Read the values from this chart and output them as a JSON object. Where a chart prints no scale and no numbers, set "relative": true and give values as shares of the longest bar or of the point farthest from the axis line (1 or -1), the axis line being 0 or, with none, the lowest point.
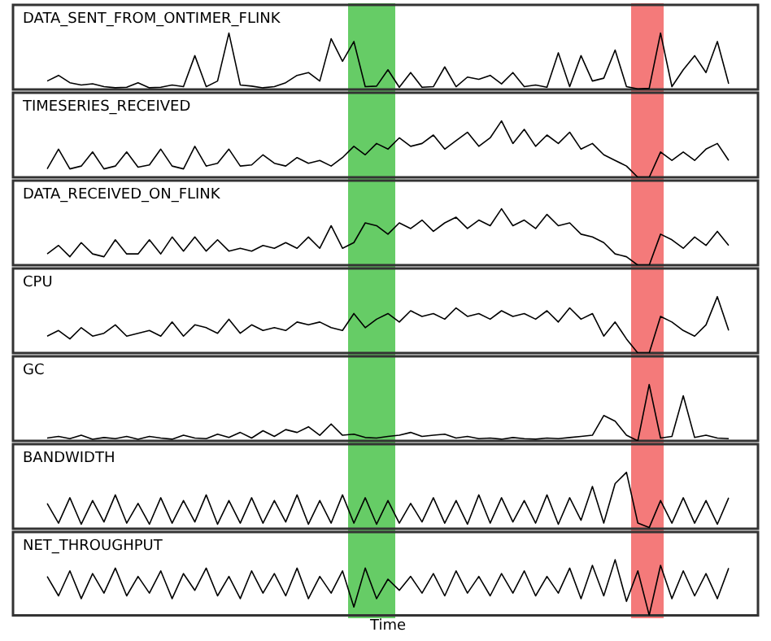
{
  "chart_data": [
    {
      "type": "line",
      "title": "DATA_SENT_FROM_ONTIMER_FLINK",
      "relative": true,
      "color": "#000000",
      "categories": [
        null,
        null,
        null,
        null,
        null,
        null,
        null,
        null,
        null,
        null,
        null,
        null,
        null,
        null,
        null,
        null,
        null,
        null,
        null,
        null,
        null,
        null,
        null,
        null,
        null,
        null,
        null,
        null,
        null,
        null,
        null,
        null,
        null,
        null,
        null,
        null,
        null,
        null,
        null,
        null,
        null,
        null,
        null,
        null,
        null,
        null,
        null,
        null,
        null,
        null,
        null,
        null,
        null,
        null,
        null,
        null,
        null,
        null,
        null,
        null,
        null
      ],
      "values": [
        0.15,
        0.25,
        0.12,
        0.08,
        0.1,
        0.05,
        0.03,
        0.04,
        0.12,
        0.03,
        0.04,
        0.08,
        0.05,
        0.6,
        0.05,
        0.15,
        1.0,
        0.08,
        0.06,
        0.03,
        0.05,
        0.12,
        0.25,
        0.3,
        0.15,
        0.9,
        0.5,
        0.85,
        0.05,
        0.06,
        0.35,
        0.04,
        0.3,
        0.04,
        0.05,
        0.4,
        0.05,
        0.22,
        0.18,
        0.25,
        0.1,
        0.3,
        0.05,
        0.08,
        0.04,
        0.65,
        0.05,
        0.6,
        0.15,
        0.2,
        0.7,
        0.05,
        0.01,
        0.02,
        1.0,
        0.05,
        0.35,
        0.6,
        0.3,
        0.85,
        0.1
      ]
    },
    {
      "type": "line",
      "title": "TIMESERIES_RECEIVED",
      "relative": true,
      "color": "#000000",
      "categories": [
        null,
        null,
        null,
        null,
        null,
        null,
        null,
        null,
        null,
        null,
        null,
        null,
        null,
        null,
        null,
        null,
        null,
        null,
        null,
        null,
        null,
        null,
        null,
        null,
        null,
        null,
        null,
        null,
        null,
        null,
        null,
        null,
        null,
        null,
        null,
        null,
        null,
        null,
        null,
        null,
        null,
        null,
        null,
        null,
        null,
        null,
        null,
        null,
        null,
        null,
        null,
        null,
        null,
        null,
        null,
        null,
        null,
        null,
        null,
        null,
        null
      ],
      "values": [
        0.15,
        0.5,
        0.15,
        0.2,
        0.45,
        0.15,
        0.2,
        0.45,
        0.18,
        0.22,
        0.5,
        0.2,
        0.15,
        0.55,
        0.2,
        0.25,
        0.5,
        0.2,
        0.22,
        0.4,
        0.25,
        0.2,
        0.35,
        0.25,
        0.3,
        0.2,
        0.35,
        0.55,
        0.4,
        0.6,
        0.5,
        0.7,
        0.55,
        0.6,
        0.75,
        0.5,
        0.65,
        0.8,
        0.55,
        0.7,
        1.0,
        0.6,
        0.85,
        0.55,
        0.75,
        0.6,
        0.8,
        0.5,
        0.6,
        0.4,
        0.3,
        0.2,
        0.0,
        0.0,
        0.45,
        0.3,
        0.45,
        0.3,
        0.5,
        0.6,
        0.3
      ]
    },
    {
      "type": "line",
      "title": "DATA_RECEIVED_ON_FLINK",
      "relative": true,
      "color": "#000000",
      "categories": [
        null,
        null,
        null,
        null,
        null,
        null,
        null,
        null,
        null,
        null,
        null,
        null,
        null,
        null,
        null,
        null,
        null,
        null,
        null,
        null,
        null,
        null,
        null,
        null,
        null,
        null,
        null,
        null,
        null,
        null,
        null,
        null,
        null,
        null,
        null,
        null,
        null,
        null,
        null,
        null,
        null,
        null,
        null,
        null,
        null,
        null,
        null,
        null,
        null,
        null,
        null,
        null,
        null,
        null,
        null,
        null,
        null,
        null,
        null,
        null,
        null
      ],
      "values": [
        0.2,
        0.35,
        0.15,
        0.4,
        0.2,
        0.15,
        0.45,
        0.2,
        0.2,
        0.45,
        0.2,
        0.5,
        0.25,
        0.5,
        0.25,
        0.45,
        0.25,
        0.3,
        0.25,
        0.35,
        0.3,
        0.4,
        0.3,
        0.5,
        0.3,
        0.7,
        0.3,
        0.4,
        0.75,
        0.7,
        0.55,
        0.75,
        0.65,
        0.8,
        0.6,
        0.75,
        0.85,
        0.65,
        0.8,
        0.7,
        1.0,
        0.7,
        0.8,
        0.65,
        0.9,
        0.7,
        0.75,
        0.55,
        0.5,
        0.4,
        0.2,
        0.15,
        0.0,
        0.0,
        0.55,
        0.45,
        0.3,
        0.5,
        0.35,
        0.6,
        0.35
      ]
    },
    {
      "type": "line",
      "title": "CPU",
      "relative": true,
      "color": "#000000",
      "categories": [
        null,
        null,
        null,
        null,
        null,
        null,
        null,
        null,
        null,
        null,
        null,
        null,
        null,
        null,
        null,
        null,
        null,
        null,
        null,
        null,
        null,
        null,
        null,
        null,
        null,
        null,
        null,
        null,
        null,
        null,
        null,
        null,
        null,
        null,
        null,
        null,
        null,
        null,
        null,
        null,
        null,
        null,
        null,
        null,
        null,
        null,
        null,
        null,
        null,
        null,
        null,
        null,
        null,
        null,
        null,
        null,
        null,
        null,
        null,
        null,
        null
      ],
      "values": [
        0.3,
        0.4,
        0.25,
        0.45,
        0.3,
        0.35,
        0.5,
        0.3,
        0.35,
        0.4,
        0.3,
        0.55,
        0.3,
        0.5,
        0.45,
        0.35,
        0.6,
        0.35,
        0.5,
        0.4,
        0.45,
        0.4,
        0.55,
        0.5,
        0.55,
        0.45,
        0.4,
        0.7,
        0.45,
        0.6,
        0.7,
        0.55,
        0.75,
        0.65,
        0.7,
        0.6,
        0.8,
        0.65,
        0.7,
        0.6,
        0.75,
        0.65,
        0.7,
        0.6,
        0.75,
        0.55,
        0.8,
        0.6,
        0.7,
        0.3,
        0.55,
        0.25,
        0.0,
        0.0,
        0.65,
        0.55,
        0.4,
        0.3,
        0.5,
        1.0,
        0.4
      ]
    },
    {
      "type": "line",
      "title": "GC",
      "relative": true,
      "color": "#000000",
      "categories": [
        null,
        null,
        null,
        null,
        null,
        null,
        null,
        null,
        null,
        null,
        null,
        null,
        null,
        null,
        null,
        null,
        null,
        null,
        null,
        null,
        null,
        null,
        null,
        null,
        null,
        null,
        null,
        null,
        null,
        null,
        null,
        null,
        null,
        null,
        null,
        null,
        null,
        null,
        null,
        null,
        null,
        null,
        null,
        null,
        null,
        null,
        null,
        null,
        null,
        null,
        null,
        null,
        null,
        null,
        null,
        null,
        null,
        null,
        null,
        null,
        null
      ],
      "values": [
        0.05,
        0.08,
        0.04,
        0.1,
        0.03,
        0.06,
        0.04,
        0.08,
        0.03,
        0.08,
        0.05,
        0.03,
        0.1,
        0.05,
        0.04,
        0.12,
        0.06,
        0.15,
        0.05,
        0.18,
        0.08,
        0.2,
        0.15,
        0.25,
        0.1,
        0.3,
        0.1,
        0.12,
        0.06,
        0.05,
        0.08,
        0.1,
        0.15,
        0.08,
        0.1,
        0.12,
        0.05,
        0.08,
        0.04,
        0.05,
        0.03,
        0.06,
        0.04,
        0.03,
        0.05,
        0.04,
        0.06,
        0.08,
        0.1,
        0.45,
        0.35,
        0.1,
        0.0,
        1.0,
        0.05,
        0.08,
        0.8,
        0.06,
        0.1,
        0.05,
        0.04
      ]
    },
    {
      "type": "line",
      "title": "BANDWIDTH",
      "relative": true,
      "color": "#000000",
      "categories": [
        null,
        null,
        null,
        null,
        null,
        null,
        null,
        null,
        null,
        null,
        null,
        null,
        null,
        null,
        null,
        null,
        null,
        null,
        null,
        null,
        null,
        null,
        null,
        null,
        null,
        null,
        null,
        null,
        null,
        null,
        null,
        null,
        null,
        null,
        null,
        null,
        null,
        null,
        null,
        null,
        null,
        null,
        null,
        null,
        null,
        null,
        null,
        null,
        null,
        null,
        null,
        null,
        null,
        null,
        null,
        null,
        null,
        null,
        null,
        null,
        null
      ],
      "values": [
        0.45,
        0.1,
        0.55,
        0.08,
        0.5,
        0.12,
        0.6,
        0.1,
        0.45,
        0.08,
        0.55,
        0.1,
        0.5,
        0.12,
        0.6,
        0.08,
        0.5,
        0.1,
        0.55,
        0.1,
        0.5,
        0.12,
        0.6,
        0.08,
        0.5,
        0.1,
        0.6,
        0.1,
        0.55,
        0.08,
        0.5,
        0.1,
        0.45,
        0.12,
        0.55,
        0.1,
        0.5,
        0.08,
        0.6,
        0.1,
        0.55,
        0.12,
        0.5,
        0.1,
        0.6,
        0.08,
        0.55,
        0.15,
        0.75,
        0.1,
        0.8,
        1.0,
        0.1,
        0.02,
        0.5,
        0.1,
        0.55,
        0.1,
        0.5,
        0.08,
        0.55
      ]
    },
    {
      "type": "line",
      "title": "NET_THROUGHPUT",
      "xlabel": "Time",
      "relative": true,
      "color": "#000000",
      "categories": [
        null,
        null,
        null,
        null,
        null,
        null,
        null,
        null,
        null,
        null,
        null,
        null,
        null,
        null,
        null,
        null,
        null,
        null,
        null,
        null,
        null,
        null,
        null,
        null,
        null,
        null,
        null,
        null,
        null,
        null,
        null,
        null,
        null,
        null,
        null,
        null,
        null,
        null,
        null,
        null,
        null,
        null,
        null,
        null,
        null,
        null,
        null,
        null,
        null,
        null,
        null,
        null,
        null,
        null,
        null,
        null,
        null,
        null,
        null,
        null,
        null
      ],
      "values": [
        0.7,
        0.35,
        0.8,
        0.3,
        0.75,
        0.4,
        0.85,
        0.35,
        0.7,
        0.4,
        0.8,
        0.3,
        0.75,
        0.45,
        0.85,
        0.35,
        0.7,
        0.3,
        0.8,
        0.4,
        0.75,
        0.35,
        0.85,
        0.3,
        0.7,
        0.4,
        0.8,
        0.15,
        0.85,
        0.3,
        0.65,
        0.45,
        0.7,
        0.4,
        0.75,
        0.35,
        0.8,
        0.4,
        0.7,
        0.35,
        0.75,
        0.4,
        0.8,
        0.35,
        0.7,
        0.4,
        0.85,
        0.3,
        0.9,
        0.35,
        1.0,
        0.25,
        0.8,
        0.0,
        0.9,
        0.3,
        0.8,
        0.35,
        0.75,
        0.3,
        0.85
      ]
    }
  ]
}
